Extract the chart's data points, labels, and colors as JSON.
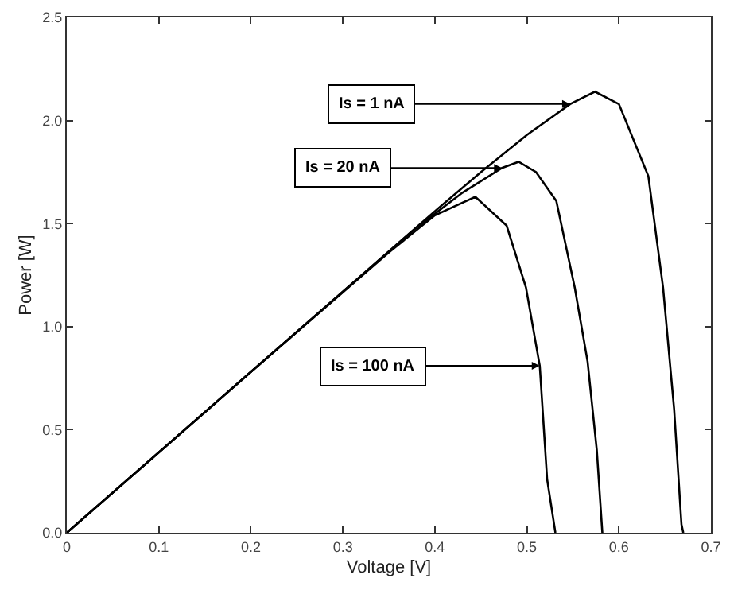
{
  "chart_data": {
    "type": "line",
    "xlabel": "Voltage [V]",
    "ylabel": "Power [W]",
    "xlim": [
      0,
      0.7
    ],
    "ylim": [
      0,
      2.5
    ],
    "xticks": [
      0,
      0.1,
      0.2,
      0.3,
      0.4,
      0.5,
      0.6,
      0.7
    ],
    "yticks": [
      {
        "value": 0,
        "label": "0.0"
      },
      {
        "value": 0.5,
        "label": "0.5"
      },
      {
        "value": 1,
        "label": "1.0"
      },
      {
        "value": 1.5,
        "label": "1.5"
      },
      {
        "value": 2,
        "label": "2.0"
      },
      {
        "value": 2.5,
        "label": "2.5"
      }
    ],
    "marker": "none",
    "line_style": "solid",
    "series": [
      {
        "color": "#000000",
        "x": [
          0,
          0.1,
          0.2,
          0.3,
          0.4,
          0.45,
          0.5,
          0.547,
          0.574,
          0.6,
          0.632,
          0.648,
          0.66,
          0.668,
          0.67
        ],
        "values": [
          0,
          0.39,
          0.78,
          1.17,
          1.56,
          1.75,
          1.93,
          2.08,
          2.14,
          2.08,
          1.73,
          1.19,
          0.6,
          0.04,
          0
        ]
      },
      {
        "color": "#000000",
        "x": [
          0,
          0.2,
          0.38,
          0.43,
          0.473,
          0.491,
          0.51,
          0.532,
          0.552,
          0.566,
          0.576,
          0.582
        ],
        "values": [
          0,
          0.78,
          1.48,
          1.65,
          1.77,
          1.8,
          1.75,
          1.61,
          1.19,
          0.83,
          0.4,
          0
        ]
      },
      {
        "color": "#000000",
        "x": [
          0,
          0.2,
          0.35,
          0.4,
          0.444,
          0.478,
          0.499,
          0.514,
          0.522,
          0.531
        ],
        "values": [
          0,
          0.78,
          1.36,
          1.54,
          1.63,
          1.49,
          1.19,
          0.81,
          0.26,
          0
        ]
      }
    ],
    "annotations": [
      {
        "text": "Is = 1 nA",
        "x": 0.547,
        "y": 2.08
      },
      {
        "text": "Is = 20 nA",
        "x": 0.473,
        "y": 1.77
      },
      {
        "text": "Is = 100 nA",
        "x": 0.514,
        "y": 0.81
      }
    ]
  }
}
